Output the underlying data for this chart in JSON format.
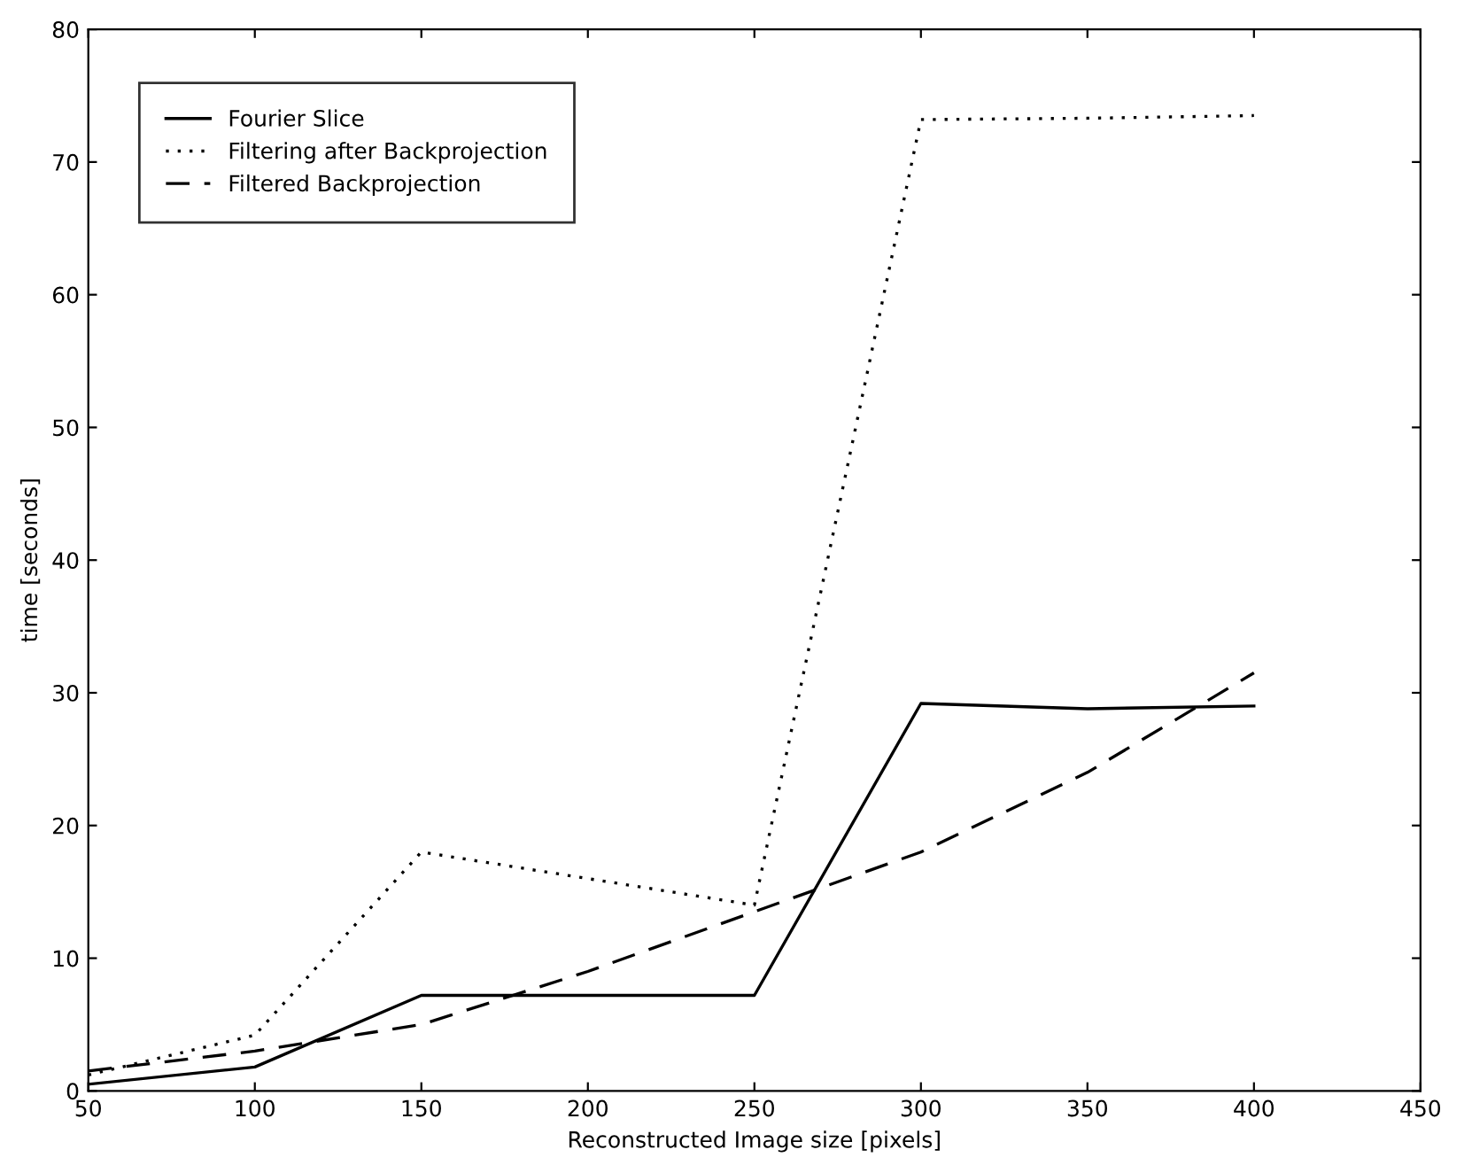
{
  "chart_data": {
    "type": "line",
    "xlabel": "Reconstructed Image size [pixels]",
    "ylabel": "time [seconds]",
    "x": [
      50,
      100,
      150,
      200,
      250,
      300,
      350,
      400
    ],
    "series": [
      {
        "name": "Fourier Slice",
        "color": "#000000",
        "line_style": "solid",
        "values": [
          0.5,
          1.8,
          7.2,
          7.2,
          7.2,
          29.2,
          28.8,
          29.0
        ]
      },
      {
        "name": "Filtering after Backprojection",
        "color": "#000000",
        "line_style": "dotted",
        "values": [
          1.2,
          4.2,
          18,
          16,
          14,
          73.2,
          73.3,
          73.5
        ]
      },
      {
        "name": "Filtered Backprojection",
        "color": "#000000",
        "line_style": "dashed",
        "values": [
          1.5,
          3,
          5,
          9,
          13.5,
          18,
          24,
          31.5
        ]
      }
    ],
    "xlim": [
      50,
      450
    ],
    "ylim": [
      0,
      80
    ],
    "xticks": [
      50,
      100,
      150,
      200,
      250,
      300,
      350,
      400,
      450
    ],
    "yticks": [
      0,
      10,
      20,
      30,
      40,
      50,
      60,
      70,
      80
    ],
    "grid": false,
    "legend": "top left",
    "marker": "none"
  }
}
